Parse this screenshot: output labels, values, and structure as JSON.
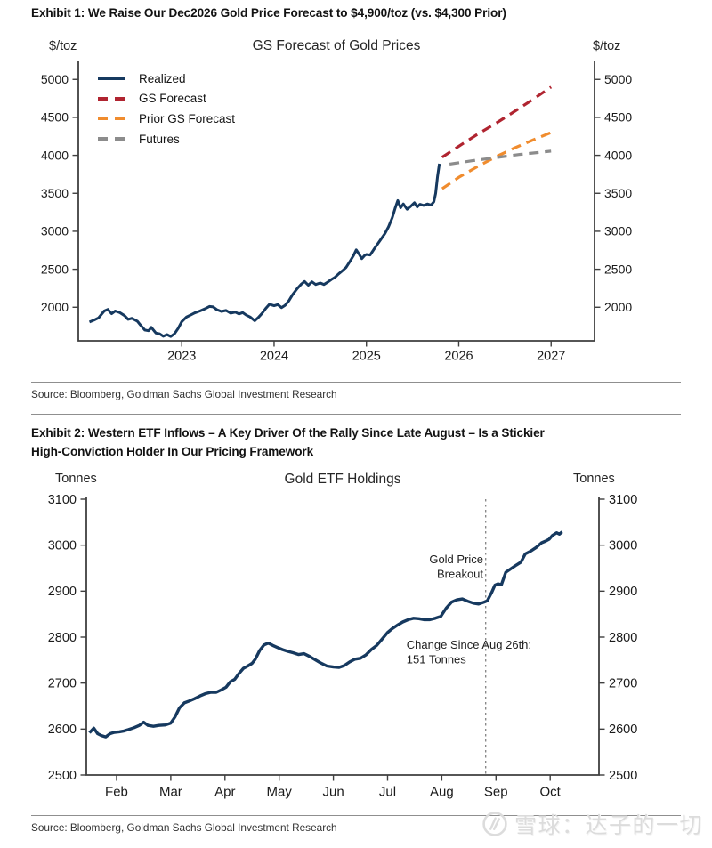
{
  "exhibit1": {
    "title": "Exhibit 1: We Raise Our Dec2026 Gold Price Forecast to $4,900/toz (vs. $4,300 Prior)",
    "source": "Source: Bloomberg, Goldman Sachs Global Investment Research"
  },
  "exhibit2": {
    "title_lines": [
      "Exhibit 2: Western ETF Inflows – A Key Driver Of the Rally Since Late August – Is a Stickier",
      "High-Conviction Holder In Our Pricing Framework"
    ],
    "source": "Source: Bloomberg, Goldman Sachs Global Investment Research"
  },
  "watermark": {
    "text": "雪球：达子的一切",
    "logo": "xueqiu-circle-logo"
  },
  "chart_data": [
    {
      "type": "line",
      "title": "GS Forecast of Gold Prices",
      "ylabel_left": "$/toz",
      "ylabel_right": "$/toz",
      "xlabel": "",
      "y_ticks": [
        2000,
        2500,
        3000,
        3500,
        4000,
        4500,
        5000
      ],
      "x_ticks": [
        2023,
        2024,
        2025,
        2026,
        2027
      ],
      "xlim": [
        2021.88,
        2027.47
      ],
      "ylim": [
        1558,
        5249
      ],
      "grid": false,
      "legend_position": "upper-left-inside",
      "series": [
        {
          "name": "Realized",
          "color": "#16395F",
          "style": "solid",
          "points": [
            [
              2022.0,
              1805
            ],
            [
              2022.05,
              1830
            ],
            [
              2022.1,
              1860
            ],
            [
              2022.16,
              1950
            ],
            [
              2022.2,
              1972
            ],
            [
              2022.24,
              1915
            ],
            [
              2022.28,
              1950
            ],
            [
              2022.33,
              1928
            ],
            [
              2022.38,
              1890
            ],
            [
              2022.42,
              1840
            ],
            [
              2022.46,
              1855
            ],
            [
              2022.52,
              1815
            ],
            [
              2022.55,
              1770
            ],
            [
              2022.6,
              1700
            ],
            [
              2022.64,
              1690
            ],
            [
              2022.67,
              1735
            ],
            [
              2022.72,
              1660
            ],
            [
              2022.76,
              1650
            ],
            [
              2022.8,
              1618
            ],
            [
              2022.84,
              1640
            ],
            [
              2022.88,
              1615
            ],
            [
              2022.92,
              1648
            ],
            [
              2022.96,
              1720
            ],
            [
              2023.0,
              1810
            ],
            [
              2023.05,
              1870
            ],
            [
              2023.1,
              1900
            ],
            [
              2023.14,
              1925
            ],
            [
              2023.2,
              1952
            ],
            [
              2023.26,
              1985
            ],
            [
              2023.3,
              2010
            ],
            [
              2023.34,
              2005
            ],
            [
              2023.38,
              1968
            ],
            [
              2023.43,
              1945
            ],
            [
              2023.48,
              1958
            ],
            [
              2023.53,
              1922
            ],
            [
              2023.58,
              1935
            ],
            [
              2023.62,
              1912
            ],
            [
              2023.66,
              1930
            ],
            [
              2023.7,
              1895
            ],
            [
              2023.74,
              1872
            ],
            [
              2023.79,
              1822
            ],
            [
              2023.83,
              1865
            ],
            [
              2023.87,
              1920
            ],
            [
              2023.91,
              1985
            ],
            [
              2023.95,
              2040
            ],
            [
              2024.0,
              2020
            ],
            [
              2024.04,
              2035
            ],
            [
              2024.08,
              1995
            ],
            [
              2024.12,
              2025
            ],
            [
              2024.16,
              2085
            ],
            [
              2024.2,
              2165
            ],
            [
              2024.25,
              2245
            ],
            [
              2024.29,
              2300
            ],
            [
              2024.33,
              2340
            ],
            [
              2024.37,
              2290
            ],
            [
              2024.41,
              2335
            ],
            [
              2024.45,
              2300
            ],
            [
              2024.5,
              2320
            ],
            [
              2024.54,
              2300
            ],
            [
              2024.58,
              2330
            ],
            [
              2024.62,
              2365
            ],
            [
              2024.66,
              2395
            ],
            [
              2024.7,
              2440
            ],
            [
              2024.74,
              2480
            ],
            [
              2024.78,
              2525
            ],
            [
              2024.82,
              2600
            ],
            [
              2024.86,
              2680
            ],
            [
              2024.89,
              2755
            ],
            [
              2024.92,
              2700
            ],
            [
              2024.95,
              2640
            ],
            [
              2024.98,
              2680
            ],
            [
              2025.0,
              2695
            ],
            [
              2025.04,
              2688
            ],
            [
              2025.08,
              2760
            ],
            [
              2025.12,
              2830
            ],
            [
              2025.16,
              2900
            ],
            [
              2025.2,
              2970
            ],
            [
              2025.24,
              3060
            ],
            [
              2025.28,
              3180
            ],
            [
              2025.31,
              3300
            ],
            [
              2025.34,
              3405
            ],
            [
              2025.37,
              3310
            ],
            [
              2025.4,
              3360
            ],
            [
              2025.44,
              3290
            ],
            [
              2025.48,
              3330
            ],
            [
              2025.52,
              3375
            ],
            [
              2025.55,
              3320
            ],
            [
              2025.58,
              3355
            ],
            [
              2025.62,
              3340
            ],
            [
              2025.66,
              3360
            ],
            [
              2025.7,
              3345
            ],
            [
              2025.73,
              3390
            ],
            [
              2025.75,
              3500
            ],
            [
              2025.77,
              3720
            ],
            [
              2025.79,
              3890
            ]
          ]
        },
        {
          "name": "GS Forecast",
          "color": "#B02430",
          "style": "dashed",
          "points": [
            [
              2025.82,
              3975
            ],
            [
              2026.0,
              4120
            ],
            [
              2026.2,
              4275
            ],
            [
              2026.4,
              4420
            ],
            [
              2026.6,
              4575
            ],
            [
              2026.8,
              4735
            ],
            [
              2027.0,
              4900
            ]
          ]
        },
        {
          "name": "Prior GS Forecast",
          "color": "#F08C2E",
          "style": "dashed",
          "points": [
            [
              2025.82,
              3560
            ],
            [
              2026.0,
              3710
            ],
            [
              2026.2,
              3850
            ],
            [
              2026.4,
              3980
            ],
            [
              2026.6,
              4095
            ],
            [
              2026.8,
              4200
            ],
            [
              2027.0,
              4300
            ]
          ]
        },
        {
          "name": "Futures",
          "color": "#8C8C8C",
          "style": "dashed",
          "points": [
            [
              2025.9,
              3885
            ],
            [
              2026.15,
              3930
            ],
            [
              2026.4,
              3970
            ],
            [
              2026.65,
              4010
            ],
            [
              2027.0,
              4055
            ]
          ]
        }
      ]
    },
    {
      "type": "line",
      "title": "Gold ETF Holdings",
      "ylabel_left": "Tonnes",
      "ylabel_right": "Tonnes",
      "xlabel": "",
      "y_ticks": [
        2500,
        2600,
        2700,
        2800,
        2900,
        3000,
        3100
      ],
      "x_ticks": [
        "Feb",
        "Mar",
        "Apr",
        "May",
        "Jun",
        "Jul",
        "Aug",
        "Sep",
        "Oct"
      ],
      "xlim_months": [
        0.442,
        9.9
      ],
      "ylim": [
        2500,
        3100
      ],
      "grid": false,
      "vline": {
        "x": 7.81,
        "meaning": "Aug 26th",
        "style": "dotted"
      },
      "annotations": [
        {
          "lines": [
            "Gold Price",
            "Breakout"
          ],
          "x": 7.766,
          "y": 2961,
          "align": "right"
        },
        {
          "lines": [
            "Change Since Aug 26th:",
            "151 Tonnes"
          ],
          "x": 6.35,
          "y": 2775,
          "align": "left"
        }
      ],
      "series": [
        {
          "name": "Gold ETF Holdings",
          "color": "#16395F",
          "style": "solid",
          "points": [
            [
              0.5,
              2592
            ],
            [
              0.58,
              2602
            ],
            [
              0.65,
              2590
            ],
            [
              0.72,
              2586
            ],
            [
              0.8,
              2583
            ],
            [
              0.88,
              2590
            ],
            [
              0.96,
              2593
            ],
            [
              1.05,
              2594
            ],
            [
              1.14,
              2596
            ],
            [
              1.22,
              2599
            ],
            [
              1.32,
              2603
            ],
            [
              1.42,
              2608
            ],
            [
              1.5,
              2615
            ],
            [
              1.58,
              2608
            ],
            [
              1.68,
              2606
            ],
            [
              1.78,
              2608
            ],
            [
              1.9,
              2609
            ],
            [
              2.0,
              2613
            ],
            [
              2.08,
              2627
            ],
            [
              2.16,
              2646
            ],
            [
              2.25,
              2657
            ],
            [
              2.34,
              2661
            ],
            [
              2.44,
              2666
            ],
            [
              2.54,
              2672
            ],
            [
              2.64,
              2677
            ],
            [
              2.74,
              2680
            ],
            [
              2.84,
              2680
            ],
            [
              2.93,
              2685
            ],
            [
              3.02,
              2691
            ],
            [
              3.1,
              2703
            ],
            [
              3.18,
              2708
            ],
            [
              3.26,
              2721
            ],
            [
              3.34,
              2732
            ],
            [
              3.42,
              2737
            ],
            [
              3.5,
              2743
            ],
            [
              3.56,
              2752
            ],
            [
              3.64,
              2771
            ],
            [
              3.72,
              2783
            ],
            [
              3.8,
              2787
            ],
            [
              3.88,
              2782
            ],
            [
              3.96,
              2778
            ],
            [
              4.06,
              2773
            ],
            [
              4.16,
              2769
            ],
            [
              4.26,
              2766
            ],
            [
              4.36,
              2762
            ],
            [
              4.46,
              2764
            ],
            [
              4.56,
              2758
            ],
            [
              4.66,
              2751
            ],
            [
              4.76,
              2744
            ],
            [
              4.88,
              2737
            ],
            [
              5.0,
              2735
            ],
            [
              5.1,
              2734
            ],
            [
              5.2,
              2738
            ],
            [
              5.3,
              2746
            ],
            [
              5.4,
              2752
            ],
            [
              5.5,
              2754
            ],
            [
              5.6,
              2761
            ],
            [
              5.7,
              2773
            ],
            [
              5.8,
              2782
            ],
            [
              5.9,
              2796
            ],
            [
              6.0,
              2810
            ],
            [
              6.08,
              2818
            ],
            [
              6.18,
              2826
            ],
            [
              6.28,
              2833
            ],
            [
              6.38,
              2838
            ],
            [
              6.48,
              2841
            ],
            [
              6.58,
              2840
            ],
            [
              6.68,
              2838
            ],
            [
              6.78,
              2838
            ],
            [
              6.88,
              2841
            ],
            [
              6.98,
              2845
            ],
            [
              7.08,
              2863
            ],
            [
              7.18,
              2876
            ],
            [
              7.28,
              2881
            ],
            [
              7.38,
              2883
            ],
            [
              7.48,
              2878
            ],
            [
              7.58,
              2874
            ],
            [
              7.68,
              2872
            ],
            [
              7.78,
              2876
            ],
            [
              7.84,
              2879
            ],
            [
              7.92,
              2897
            ],
            [
              7.98,
              2913
            ],
            [
              8.04,
              2916
            ],
            [
              8.1,
              2914
            ],
            [
              8.18,
              2941
            ],
            [
              8.28,
              2949
            ],
            [
              8.38,
              2957
            ],
            [
              8.46,
              2963
            ],
            [
              8.54,
              2981
            ],
            [
              8.64,
              2987
            ],
            [
              8.74,
              2995
            ],
            [
              8.84,
              3005
            ],
            [
              8.92,
              3009
            ],
            [
              8.98,
              3013
            ],
            [
              9.04,
              3021
            ],
            [
              9.12,
              3027
            ],
            [
              9.17,
              3024
            ],
            [
              9.22,
              3029
            ]
          ]
        }
      ]
    }
  ]
}
